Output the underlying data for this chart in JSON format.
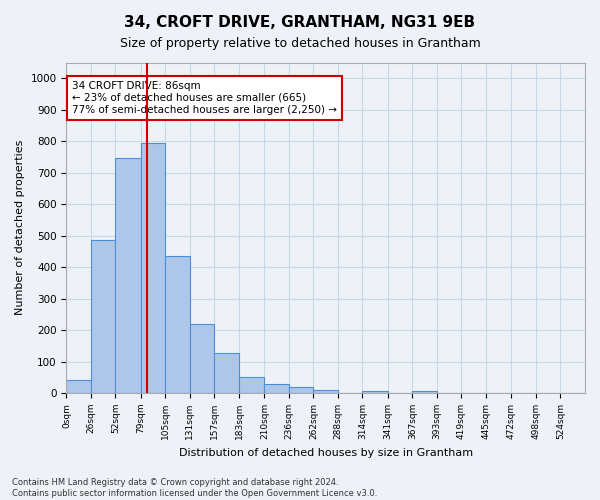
{
  "title": "34, CROFT DRIVE, GRANTHAM, NG31 9EB",
  "subtitle": "Size of property relative to detached houses in Grantham",
  "xlabel": "Distribution of detached houses by size in Grantham",
  "ylabel": "Number of detached properties",
  "bin_edges": [
    0,
    26,
    52,
    79,
    105,
    131,
    157,
    183,
    210,
    236,
    262,
    288,
    314,
    341,
    367,
    393,
    419,
    445,
    472,
    498,
    524,
    550
  ],
  "bar_values": [
    40,
    485,
    748,
    793,
    435,
    220,
    128,
    50,
    28,
    18,
    10,
    0,
    8,
    0,
    8,
    0,
    0,
    0,
    0,
    0,
    0
  ],
  "bar_color": "#aec6e8",
  "bar_edge_color": "#4a90d9",
  "vline_x": 86,
  "vline_color": "#cc0000",
  "annotation_text": "34 CROFT DRIVE: 86sqm\n← 23% of detached houses are smaller (665)\n77% of semi-detached houses are larger (2,250) →",
  "annotation_box_color": "#ffffff",
  "annotation_box_edge": "#cc0000",
  "ylim": [
    0,
    1050
  ],
  "yticks": [
    0,
    100,
    200,
    300,
    400,
    500,
    600,
    700,
    800,
    900,
    1000
  ],
  "xtick_vals": [
    0,
    26,
    52,
    79,
    105,
    131,
    157,
    183,
    210,
    236,
    262,
    288,
    314,
    341,
    367,
    393,
    419,
    445,
    472,
    498,
    524
  ],
  "xtick_labels": [
    "0sqm",
    "26sqm",
    "52sqm",
    "79sqm",
    "105sqm",
    "131sqm",
    "157sqm",
    "183sqm",
    "210sqm",
    "236sqm",
    "262sqm",
    "288sqm",
    "314sqm",
    "341sqm",
    "367sqm",
    "393sqm",
    "419sqm",
    "445sqm",
    "472sqm",
    "498sqm",
    "524sqm"
  ],
  "grid_color": "#c8d8e8",
  "footer_line1": "Contains HM Land Registry data © Crown copyright and database right 2024.",
  "footer_line2": "Contains public sector information licensed under the Open Government Licence v3.0.",
  "bg_color": "#eef2f8",
  "plot_bg_color": "#eef2f8"
}
